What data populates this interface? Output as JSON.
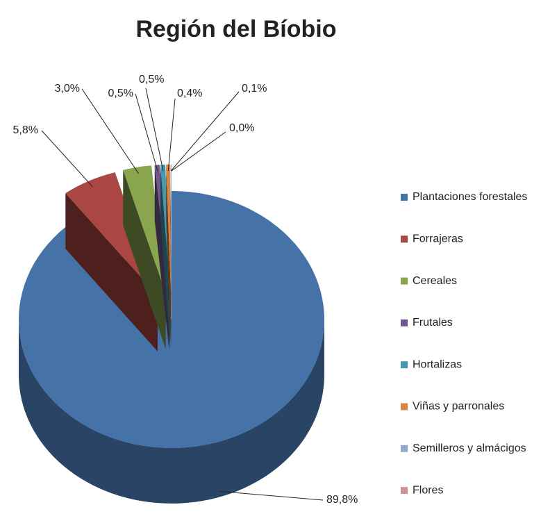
{
  "chart_data": {
    "type": "pie",
    "title": "Región del Bíobio",
    "categories": [
      "Plantaciones forestales",
      "Forrajeras",
      "Cereales",
      "Frutales",
      "Hortalizas",
      "Viñas y parronales",
      "Semilleros y almácigos",
      "Flores"
    ],
    "values": [
      89.8,
      5.8,
      3.0,
      0.5,
      0.5,
      0.4,
      0.1,
      0.0
    ],
    "value_labels": [
      "89,8%",
      "5,8%",
      "3,0%",
      "0,5%",
      "0,5%",
      "0,4%",
      "0,1%",
      "0,0%"
    ],
    "colors": [
      "#4572a7",
      "#aa4643",
      "#89a54e",
      "#71588f",
      "#4198af",
      "#db843d",
      "#93a9cf",
      "#d19392"
    ],
    "legend": "right"
  }
}
